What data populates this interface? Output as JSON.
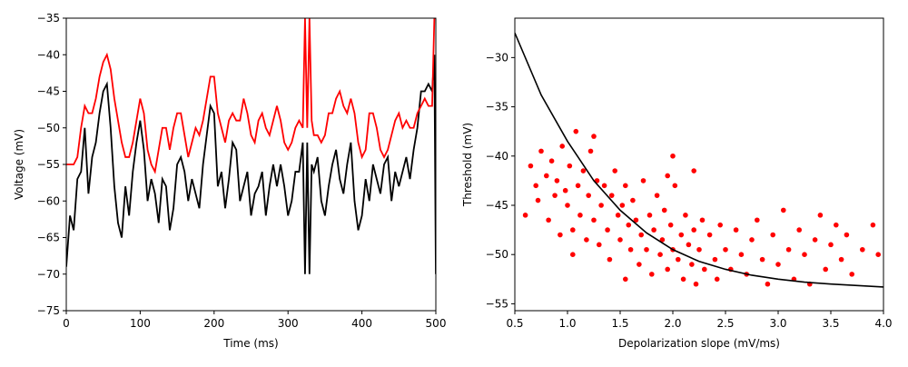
{
  "chart_data": [
    {
      "type": "line",
      "xlabel": "Time (ms)",
      "ylabel": "Voltage (mV)",
      "xlim": [
        0,
        500
      ],
      "ylim": [
        -75,
        -35
      ],
      "xticks": [
        0,
        100,
        200,
        300,
        400,
        500
      ],
      "yticks": [
        {
          "value": -75,
          "label": "−75"
        },
        {
          "value": -70,
          "label": "−70"
        },
        {
          "value": -65,
          "label": "−65"
        },
        {
          "value": -60,
          "label": "−60"
        },
        {
          "value": -55,
          "label": "−55"
        },
        {
          "value": -50,
          "label": "−50"
        },
        {
          "value": -45,
          "label": "−45"
        },
        {
          "value": -40,
          "label": "−40"
        },
        {
          "value": -35,
          "label": "−35"
        }
      ],
      "x": [
        0,
        5,
        10,
        15,
        20,
        25,
        30,
        35,
        40,
        45,
        50,
        55,
        60,
        65,
        70,
        75,
        80,
        85,
        90,
        95,
        100,
        105,
        110,
        115,
        120,
        125,
        130,
        135,
        140,
        145,
        150,
        155,
        160,
        165,
        170,
        175,
        180,
        185,
        190,
        195,
        200,
        205,
        210,
        215,
        220,
        225,
        230,
        235,
        240,
        245,
        250,
        255,
        260,
        265,
        270,
        275,
        280,
        285,
        290,
        295,
        300,
        305,
        310,
        315,
        320,
        323,
        326,
        329,
        332,
        335,
        340,
        345,
        350,
        355,
        360,
        365,
        370,
        375,
        380,
        385,
        390,
        395,
        400,
        405,
        410,
        415,
        420,
        425,
        430,
        435,
        440,
        445,
        450,
        455,
        460,
        465,
        470,
        475,
        480,
        485,
        490,
        495,
        498,
        500
      ],
      "series": [
        {
          "color": "#000000",
          "values": [
            -69,
            -62,
            -64,
            -57,
            -56,
            -50,
            -59,
            -54,
            -52,
            -48,
            -45,
            -44,
            -50,
            -58,
            -63,
            -65,
            -58,
            -62,
            -56,
            -52,
            -49,
            -53,
            -60,
            -57,
            -59,
            -63,
            -57,
            -58,
            -64,
            -61,
            -55,
            -54,
            -56,
            -60,
            -57,
            -59,
            -61,
            -55,
            -51,
            -47,
            -48,
            -58,
            -56,
            -61,
            -57,
            -52,
            -53,
            -60,
            -58,
            -56,
            -62,
            -59,
            -58,
            -56,
            -62,
            -58,
            -55,
            -58,
            -55,
            -58,
            -62,
            -60,
            -56,
            -56,
            -52,
            -70,
            -52,
            -70,
            -55,
            -56,
            -54,
            -60,
            -62,
            -58,
            -55,
            -53,
            -57,
            -59,
            -55,
            -52,
            -60,
            -64,
            -62,
            -57,
            -60,
            -55,
            -57,
            -59,
            -55,
            -54,
            -60,
            -56,
            -58,
            -56,
            -54,
            -57,
            -53,
            -50,
            -45,
            -45,
            -44,
            -45,
            -40,
            -70
          ]
        },
        {
          "color": "#ff0000",
          "values": [
            -55,
            -55,
            -55,
            -54,
            -50,
            -47,
            -48,
            -48,
            -46,
            -43,
            -41,
            -40,
            -42,
            -46,
            -49,
            -52,
            -54,
            -54,
            -52,
            -49,
            -46,
            -48,
            -53,
            -55,
            -56,
            -53,
            -50,
            -50,
            -53,
            -50,
            -48,
            -48,
            -51,
            -54,
            -52,
            -50,
            -51,
            -49,
            -46,
            -43,
            -43,
            -48,
            -50,
            -52,
            -49,
            -48,
            -49,
            -49,
            -46,
            -48,
            -51,
            -52,
            -49,
            -48,
            -50,
            -51,
            -49,
            -47,
            -49,
            -52,
            -53,
            -52,
            -50,
            -49,
            -50,
            -35,
            -50,
            -35,
            -49,
            -51,
            -51,
            -52,
            -51,
            -48,
            -48,
            -46,
            -45,
            -47,
            -48,
            -46,
            -48,
            -52,
            -54,
            -53,
            -48,
            -48,
            -50,
            -53,
            -54,
            -53,
            -51,
            -49,
            -48,
            -50,
            -49,
            -50,
            -50,
            -48,
            -47,
            -46,
            -47,
            -47,
            -35,
            -35
          ]
        }
      ]
    },
    {
      "type": "scatter",
      "xlabel": "Depolarization slope (mV/ms)",
      "ylabel": "Threshold (mV)",
      "xlim": [
        0.5,
        4.0
      ],
      "ylim": [
        -55.7,
        -26
      ],
      "xticks": [
        0.5,
        {
          "value": 1.0,
          "label": "1.0"
        },
        1.5,
        {
          "value": 2.0,
          "label": "2.0"
        },
        2.5,
        {
          "value": 3.0,
          "label": "3.0"
        },
        3.5,
        {
          "value": 4.0,
          "label": "4.0"
        }
      ],
      "yticks": [
        {
          "value": -55,
          "label": "−55"
        },
        {
          "value": -50,
          "label": "−50"
        },
        {
          "value": -45,
          "label": "−45"
        },
        {
          "value": -40,
          "label": "−40"
        },
        {
          "value": -35,
          "label": "−35"
        },
        {
          "value": -30,
          "label": "−30"
        }
      ],
      "points": {
        "color": "#ff0000",
        "x": [
          0.6,
          0.65,
          0.7,
          0.72,
          0.75,
          0.8,
          0.82,
          0.85,
          0.88,
          0.9,
          0.93,
          0.95,
          0.98,
          1.0,
          1.02,
          1.05,
          1.05,
          1.08,
          1.1,
          1.12,
          1.15,
          1.18,
          1.2,
          1.22,
          1.25,
          1.28,
          1.3,
          1.32,
          1.35,
          1.38,
          1.4,
          1.42,
          1.45,
          1.48,
          1.5,
          1.52,
          1.55,
          1.55,
          1.58,
          1.6,
          1.62,
          1.65,
          1.68,
          1.7,
          1.72,
          1.75,
          1.78,
          1.8,
          1.82,
          1.85,
          1.88,
          1.9,
          1.92,
          1.95,
          1.98,
          2.0,
          2.02,
          2.05,
          2.08,
          2.1,
          2.12,
          2.15,
          2.18,
          2.2,
          2.22,
          2.25,
          2.28,
          2.3,
          2.35,
          2.4,
          2.42,
          2.45,
          2.5,
          2.55,
          2.6,
          2.65,
          2.7,
          2.75,
          2.8,
          2.85,
          2.9,
          2.95,
          3.0,
          3.05,
          3.1,
          3.15,
          3.2,
          3.25,
          3.3,
          3.35,
          3.4,
          3.45,
          3.5,
          3.55,
          3.6,
          3.65,
          3.7,
          3.8,
          3.9,
          3.95,
          1.95,
          2.0,
          2.2,
          1.25
        ],
        "y": [
          -46,
          -41,
          -43,
          -44.5,
          -39.5,
          -42,
          -46.5,
          -40.5,
          -44,
          -42.5,
          -48,
          -39,
          -43.5,
          -45,
          -41,
          -47.5,
          -50,
          -37.5,
          -43,
          -46,
          -41.5,
          -48.5,
          -44,
          -39.5,
          -46.5,
          -42.5,
          -49,
          -45,
          -43,
          -47.5,
          -50.5,
          -44,
          -41.5,
          -46,
          -48.5,
          -45,
          -43,
          -52.5,
          -47,
          -49.5,
          -44.5,
          -46.5,
          -51,
          -48,
          -42.5,
          -49.5,
          -46,
          -52,
          -47.5,
          -44,
          -50,
          -48.5,
          -45.5,
          -51.5,
          -47,
          -49.5,
          -43,
          -50.5,
          -48,
          -52.5,
          -46,
          -49,
          -51,
          -47.5,
          -53,
          -49.5,
          -46.5,
          -51.5,
          -48,
          -50.5,
          -52.5,
          -47,
          -49.5,
          -51.5,
          -47.5,
          -50,
          -52,
          -48.5,
          -46.5,
          -50.5,
          -53,
          -48,
          -51,
          -45.5,
          -49.5,
          -52.5,
          -47.5,
          -50,
          -53,
          -48.5,
          -46,
          -51.5,
          -49,
          -47,
          -50.5,
          -48,
          -52,
          -49.5,
          -47,
          -50,
          -42,
          -40,
          -41.5,
          -38
        ]
      },
      "fit": {
        "color": "#000000",
        "x": [
          0.5,
          0.75,
          1.0,
          1.25,
          1.5,
          1.75,
          2.0,
          2.25,
          2.5,
          2.75,
          3.0,
          3.25,
          3.5,
          3.75,
          4.0
        ],
        "y": [
          -27.5,
          -33.8,
          -38.5,
          -42.5,
          -45.5,
          -47.8,
          -49.5,
          -50.7,
          -51.5,
          -52.1,
          -52.5,
          -52.8,
          -53,
          -53.15,
          -53.3
        ]
      }
    }
  ]
}
